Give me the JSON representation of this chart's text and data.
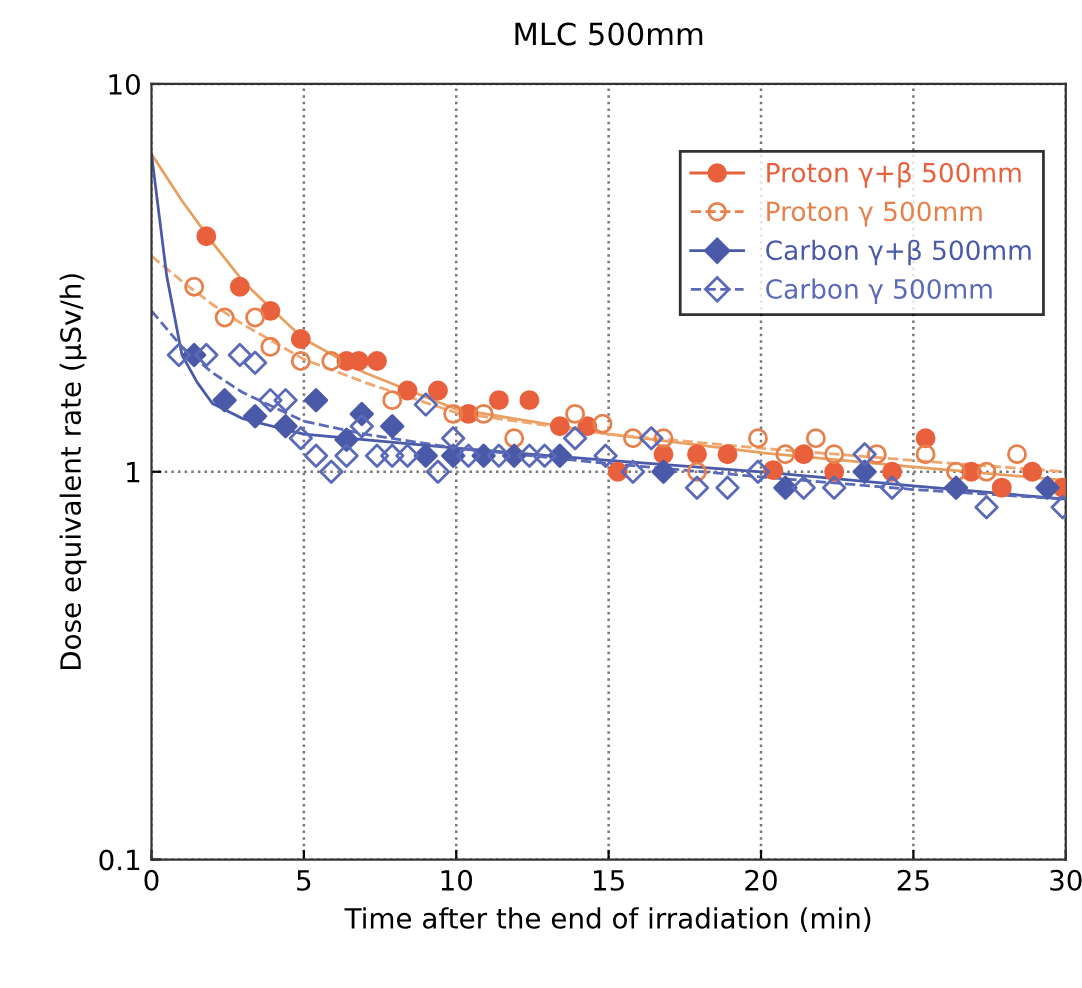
{
  "chart_data": {
    "type": "scatter",
    "title": "MLC 500mm",
    "xlabel": "Time after the end of irradiation (min)",
    "ylabel": "Dose equivalent rate (μSv/h)",
    "log": "y",
    "xlim": [
      0,
      30
    ],
    "ylim": [
      0.1,
      10
    ],
    "xticks": [
      0,
      5,
      10,
      15,
      20,
      25,
      30
    ],
    "yticks": [
      0.1,
      1,
      10
    ],
    "grid": true,
    "legend": "top right",
    "series": [
      {
        "name": "Proton γ+β 500mm",
        "marker": "circle",
        "line_style": "solid",
        "color": "#e8603c",
        "x": [
          1.8,
          2.9,
          3.9,
          4.9,
          6.4,
          6.8,
          7.4,
          8.4,
          9.4,
          10.4,
          11.4,
          12.4,
          13.4,
          14.3,
          15.3,
          16.8,
          17.9,
          18.9,
          20.4,
          21.4,
          22.4,
          24.3,
          25.4,
          26.9,
          27.9,
          28.9,
          29.9
        ],
        "values": [
          4.05,
          3.0,
          2.6,
          2.2,
          1.93,
          1.93,
          1.93,
          1.62,
          1.62,
          1.41,
          1.53,
          1.53,
          1.31,
          1.31,
          1.0,
          1.11,
          1.11,
          1.11,
          1.01,
          1.11,
          1.0,
          1.0,
          1.22,
          1.0,
          0.91,
          1.0,
          0.91
        ]
      },
      {
        "name": "Proton γ 500mm",
        "marker": "circle",
        "line_style": "dashed",
        "color": "#e8804c",
        "x": [
          1.4,
          2.4,
          3.4,
          3.9,
          4.9,
          5.9,
          7.9,
          9.9,
          10.9,
          11.9,
          13.9,
          14.8,
          15.8,
          16.8,
          17.9,
          19.9,
          20.8,
          21.8,
          22.4,
          23.8,
          25.4,
          26.4,
          27.4,
          28.4
        ],
        "values": [
          3.0,
          2.5,
          2.5,
          2.1,
          1.93,
          1.93,
          1.53,
          1.41,
          1.41,
          1.22,
          1.41,
          1.33,
          1.22,
          1.22,
          1.0,
          1.22,
          1.11,
          1.22,
          1.11,
          1.11,
          1.11,
          1.0,
          1.0,
          1.11
        ]
      },
      {
        "name": "Carbon γ+β 500mm",
        "marker": "diamond",
        "line_style": "solid",
        "color": "#4a5aa8",
        "x": [
          1.4,
          2.4,
          3.4,
          4.4,
          5.4,
          6.4,
          6.9,
          7.9,
          9.0,
          9.9,
          10.9,
          11.9,
          13.4,
          16.8,
          20.8,
          23.4,
          26.4,
          29.4
        ],
        "values": [
          2.0,
          1.53,
          1.39,
          1.31,
          1.53,
          1.21,
          1.41,
          1.31,
          1.1,
          1.1,
          1.1,
          1.1,
          1.1,
          1.0,
          0.91,
          1.0,
          0.91,
          0.91
        ]
      },
      {
        "name": "Carbon γ 500mm",
        "marker": "diamond",
        "line_style": "dashed",
        "color": "#5a6ab8",
        "x": [
          0.9,
          1.8,
          2.9,
          3.4,
          3.9,
          4.4,
          4.9,
          5.4,
          5.9,
          6.4,
          6.9,
          7.4,
          7.9,
          8.4,
          9.0,
          9.4,
          9.9,
          10.4,
          11.4,
          12.4,
          12.9,
          13.9,
          14.9,
          15.8,
          16.4,
          17.9,
          18.9,
          19.9,
          21.4,
          22.4,
          23.4,
          24.3,
          27.4,
          29.9
        ],
        "values": [
          2.0,
          2.0,
          2.0,
          1.91,
          1.53,
          1.53,
          1.22,
          1.1,
          1.0,
          1.1,
          1.31,
          1.1,
          1.1,
          1.1,
          1.49,
          1.0,
          1.22,
          1.1,
          1.1,
          1.1,
          1.1,
          1.22,
          1.1,
          1.0,
          1.22,
          0.91,
          0.91,
          1.0,
          0.91,
          0.91,
          1.11,
          0.91,
          0.81,
          0.81
        ]
      },
      {
        "type": "line",
        "line_style": "solid",
        "color": "#e8a060",
        "x": [
          0,
          1,
          2,
          3,
          4,
          5,
          7,
          10,
          15,
          20,
          25,
          30
        ],
        "values": [
          6.6,
          5.0,
          3.9,
          3.1,
          2.6,
          2.2,
          1.8,
          1.45,
          1.25,
          1.12,
          1.03,
          0.95
        ]
      },
      {
        "type": "line",
        "line_style": "dashed",
        "color": "#f0a870",
        "x": [
          0,
          1,
          2,
          3,
          5,
          7,
          10,
          15,
          20,
          25,
          30
        ],
        "values": [
          3.6,
          3.1,
          2.7,
          2.4,
          1.95,
          1.7,
          1.42,
          1.25,
          1.15,
          1.07,
          1.0
        ]
      },
      {
        "type": "line",
        "line_style": "solid",
        "color": "#4a5aa8",
        "x": [
          0,
          0.5,
          1,
          1.5,
          2,
          3,
          5,
          10,
          15,
          20,
          25,
          30
        ],
        "values": [
          6.6,
          3.2,
          2.0,
          1.7,
          1.5,
          1.37,
          1.25,
          1.15,
          1.07,
          1.0,
          0.92,
          0.85
        ]
      },
      {
        "type": "line",
        "line_style": "dashed",
        "color": "#5a6ab8",
        "x": [
          0,
          1,
          2,
          3,
          5,
          7,
          10,
          15,
          20,
          25,
          30
        ],
        "values": [
          2.6,
          2.1,
          1.8,
          1.6,
          1.35,
          1.25,
          1.15,
          1.05,
          0.97,
          0.9,
          0.85
        ]
      }
    ]
  }
}
